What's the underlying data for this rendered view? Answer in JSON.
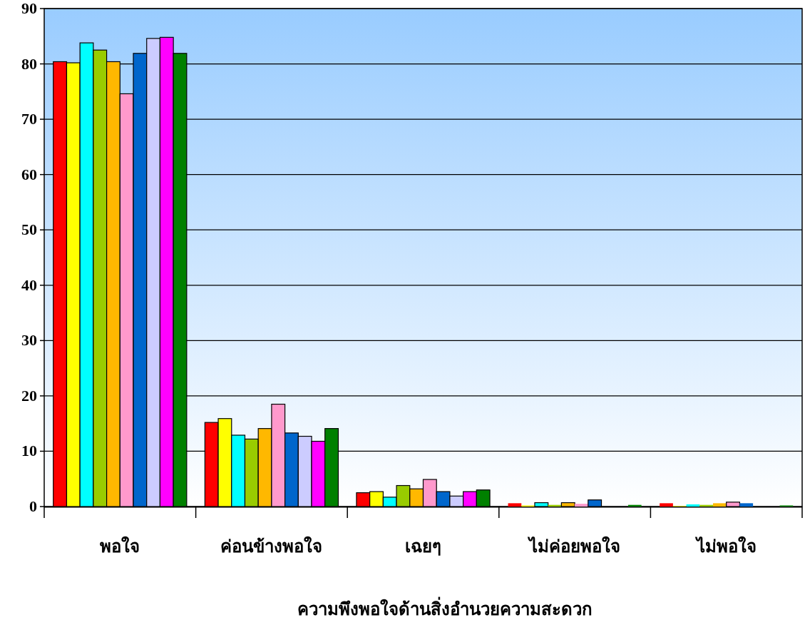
{
  "chart_data": {
    "type": "bar",
    "xlabel": "ความพึงพอใจด้านสิ่งอำนวยความสะดวก",
    "categories": [
      "พอใจ",
      "ค่อนข้างพอใจ",
      "เฉยๆ",
      "ไม่ค่อยพอใจ",
      "ไม่พอใจ"
    ],
    "series": [
      {
        "color": "#ff0000",
        "values": [
          80.4,
          15.2,
          2.5,
          0.6,
          0.6
        ]
      },
      {
        "color": "#ffff00",
        "values": [
          80.2,
          15.9,
          2.7,
          0.2,
          0.1
        ]
      },
      {
        "color": "#00ffff",
        "values": [
          83.8,
          12.9,
          1.7,
          0.7,
          0.4
        ]
      },
      {
        "color": "#99cc00",
        "values": [
          82.5,
          12.2,
          3.8,
          0.3,
          0.3
        ]
      },
      {
        "color": "#ffb800",
        "values": [
          80.4,
          14.1,
          3.2,
          0.7,
          0.6
        ]
      },
      {
        "color": "#ff99cc",
        "values": [
          74.6,
          18.5,
          4.9,
          0.5,
          0.8
        ]
      },
      {
        "color": "#0066cc",
        "values": [
          81.9,
          13.3,
          2.7,
          1.2,
          0.6
        ]
      },
      {
        "color": "#ccccff",
        "values": [
          84.6,
          12.7,
          1.9,
          0,
          0
        ]
      },
      {
        "color": "#ff00ff",
        "values": [
          84.8,
          11.8,
          2.7,
          0,
          0
        ]
      },
      {
        "color": "#008000",
        "values": [
          81.9,
          14.1,
          3.0,
          0.3,
          0.2
        ]
      }
    ],
    "ylim": [
      0,
      90
    ],
    "yticks": [
      0,
      10,
      20,
      30,
      40,
      50,
      60,
      70,
      80,
      90
    ],
    "grid": "y"
  }
}
